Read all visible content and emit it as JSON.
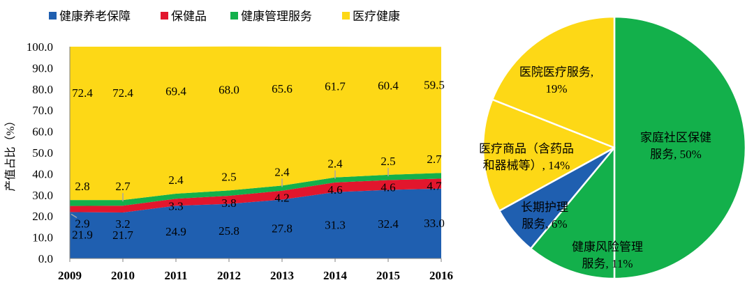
{
  "chart_data": [
    {
      "type": "area",
      "stacked": true,
      "ylabel": "产值占比（%）",
      "ylim": [
        0,
        100
      ],
      "yticks": [
        "0.0",
        "10.0",
        "20.0",
        "30.0",
        "40.0",
        "50.0",
        "60.0",
        "70.0",
        "80.0",
        "90.0",
        "100.0"
      ],
      "x": [
        "2009",
        "2010",
        "2011",
        "2012",
        "2013",
        "2014",
        "2015",
        "2016"
      ],
      "legend_position": "top",
      "series": [
        {
          "name": "健康养老保障",
          "color": "#1f5fb0",
          "values": [
            21.9,
            21.7,
            24.9,
            25.8,
            27.8,
            31.3,
            32.4,
            33.0
          ],
          "labels": [
            "21.9",
            "21.7",
            "24.9",
            "25.8",
            "27.8",
            "31.3",
            "32.4",
            "33.0"
          ]
        },
        {
          "name": "保健品",
          "color": "#e2162d",
          "values": [
            2.9,
            3.2,
            3.3,
            3.8,
            4.2,
            4.6,
            4.6,
            4.7
          ],
          "labels": [
            "2.9",
            "3.2",
            "3.3",
            "3.8",
            "4.2",
            "4.6",
            "4.6",
            "4.7"
          ]
        },
        {
          "name": "健康管理服务",
          "color": "#13b04b",
          "values": [
            2.8,
            2.7,
            2.4,
            2.5,
            2.4,
            2.4,
            2.5,
            2.7
          ],
          "labels": [
            "2.8",
            "2.7",
            "2.4",
            "2.5",
            "2.4",
            "2.4",
            "2.5",
            "2.7"
          ]
        },
        {
          "name": "医疗健康",
          "color": "#fdd816",
          "values": [
            72.4,
            72.4,
            69.4,
            68.0,
            65.6,
            61.7,
            60.4,
            59.5
          ],
          "labels": [
            "72.4",
            "72.4",
            "69.4",
            "68.0",
            "65.6",
            "61.7",
            "60.4",
            "59.5"
          ]
        }
      ]
    },
    {
      "type": "pie",
      "slices": [
        {
          "name": "家庭社区保健服务",
          "value": 50,
          "color": "#13b04b",
          "lines": [
            "家庭社区保健",
            "服务, 50%"
          ]
        },
        {
          "name": "健康风险管理服务",
          "value": 11,
          "color": "#13b04b",
          "lines": [
            "健康风险管理",
            "服务, 11%"
          ]
        },
        {
          "name": "长期护理服务",
          "value": 6,
          "color": "#1f5fb0",
          "lines": [
            "长期护理",
            "服务, 6%"
          ]
        },
        {
          "name": "医疗商品（含药品和器械等）",
          "value": 14,
          "color": "#fdd816",
          "lines": [
            "医疗商品（含药品",
            "和器械等）, 14%"
          ]
        },
        {
          "name": "医院医疗服务",
          "value": 19,
          "color": "#fdd816",
          "lines": [
            "医院医疗服务,",
            "19%"
          ]
        }
      ]
    }
  ]
}
